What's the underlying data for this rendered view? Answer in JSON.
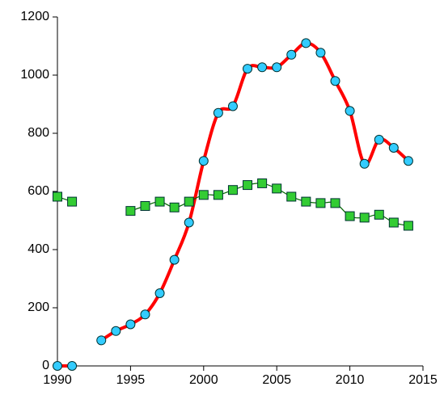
{
  "chart_data": {
    "type": "line",
    "x": [
      1990,
      1991,
      1992,
      1993,
      1994,
      1995,
      1996,
      1997,
      1998,
      1999,
      2000,
      2001,
      2002,
      2003,
      2004,
      2005,
      2006,
      2007,
      2008,
      2009,
      2010,
      2011,
      2012,
      2013,
      2014
    ],
    "series": [
      {
        "color": "#ff0000",
        "marker": "circle",
        "marker_color": "#33ccff",
        "values": [
          0,
          0,
          null,
          88,
          120,
          143,
          177,
          250,
          365,
          493,
          705,
          870,
          893,
          1022,
          1027,
          1027,
          1070,
          1110,
          1077,
          980,
          877,
          695,
          778,
          750,
          705
        ]
      },
      {
        "color": "#006600",
        "marker": "square",
        "marker_color": "#33cc33",
        "values": [
          582,
          565,
          null,
          null,
          null,
          533,
          550,
          565,
          545,
          565,
          588,
          588,
          605,
          622,
          628,
          610,
          582,
          565,
          560,
          560,
          515,
          510,
          520,
          493,
          482
        ]
      }
    ],
    "xlim": [
      1990,
      2015
    ],
    "xticks": [
      1990,
      1995,
      2000,
      2005,
      2010,
      2015
    ],
    "ylim": [
      0,
      1200
    ],
    "yticks": [
      0,
      200,
      400,
      600,
      800,
      1000,
      1200
    ],
    "grid": false
  }
}
